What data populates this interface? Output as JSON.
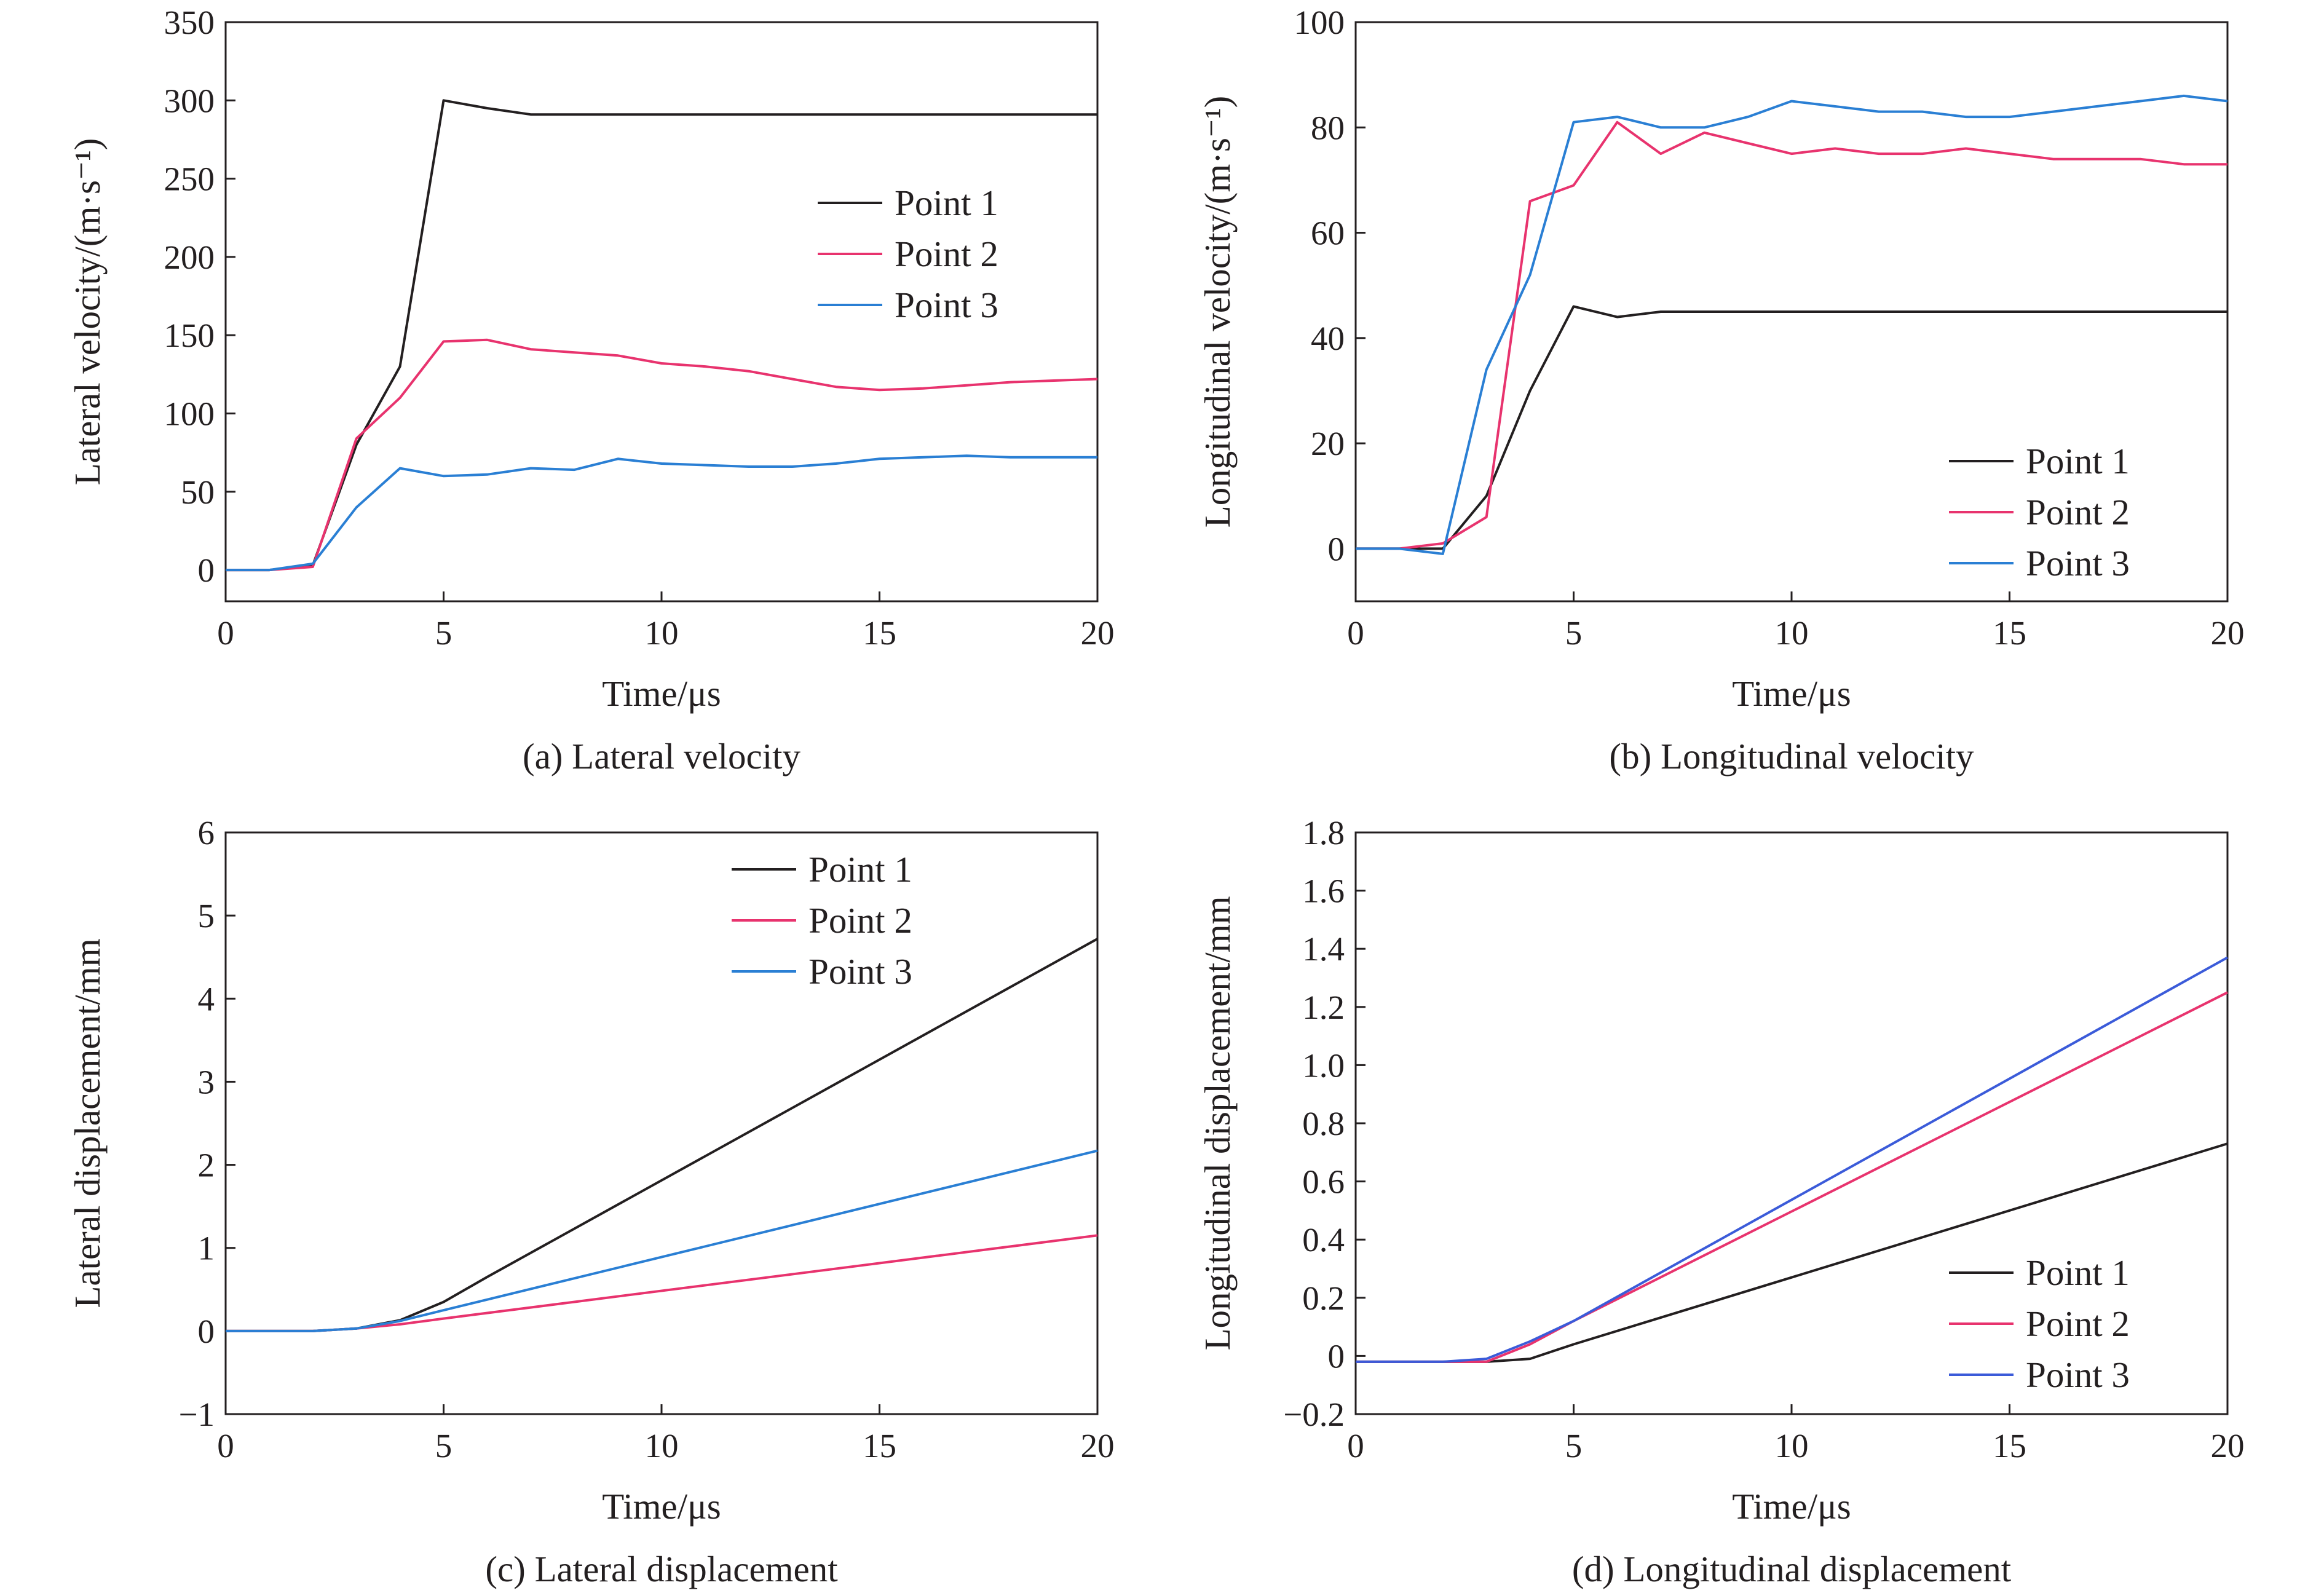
{
  "colors": {
    "point1": "#231f20",
    "point2": "#e8336e",
    "point3": "#2a7fd4",
    "point3_alt": "#3b5bd9",
    "axis": "#231f20"
  },
  "chart_data": [
    {
      "type": "line",
      "caption": "(a) Lateral velocity",
      "xlabel": "Time/μs",
      "ylabel": "Lateral velocity/(m·s⁻¹)",
      "xlim": [
        0,
        20
      ],
      "ylim": [
        -20,
        350
      ],
      "xticks": [
        "0",
        "5",
        "10",
        "15",
        "20"
      ],
      "xtick_values": [
        0,
        5,
        10,
        15,
        20
      ],
      "yticks": [
        "0",
        "50",
        "100",
        "150",
        "200",
        "250",
        "300",
        "350"
      ],
      "ytick_values": [
        0,
        50,
        100,
        150,
        200,
        250,
        300,
        350
      ],
      "legend_position": "upper-right",
      "grid": false,
      "series": [
        {
          "name": "Point 1",
          "color_key": "point1",
          "x": [
            0,
            1,
            2,
            3,
            4,
            5,
            6,
            7,
            8,
            10,
            15,
            20
          ],
          "y": [
            0,
            0,
            3,
            80,
            130,
            300,
            295,
            291,
            291,
            291,
            291,
            291
          ]
        },
        {
          "name": "Point 2",
          "color_key": "point2",
          "x": [
            0,
            1,
            2,
            3,
            4,
            5,
            6,
            7,
            8,
            9,
            10,
            11,
            12,
            13,
            14,
            15,
            16,
            17,
            18,
            19,
            20
          ],
          "y": [
            0,
            0,
            2,
            84,
            110,
            146,
            147,
            141,
            139,
            137,
            132,
            130,
            127,
            122,
            117,
            115,
            116,
            118,
            120,
            121,
            122
          ]
        },
        {
          "name": "Point 3",
          "color_key": "point3",
          "x": [
            0,
            1,
            2,
            3,
            4,
            5,
            6,
            7,
            8,
            9,
            10,
            11,
            12,
            13,
            14,
            15,
            16,
            17,
            18,
            19,
            20
          ],
          "y": [
            0,
            0,
            4,
            40,
            65,
            60,
            61,
            65,
            64,
            71,
            68,
            67,
            66,
            66,
            68,
            71,
            72,
            73,
            72,
            72,
            72
          ]
        }
      ]
    },
    {
      "type": "line",
      "caption": "(b) Longitudinal velocity",
      "xlabel": "Time/μs",
      "ylabel": "Longitudinal velocity/(m·s⁻¹)",
      "xlim": [
        0,
        20
      ],
      "ylim": [
        -10,
        100
      ],
      "xticks": [
        "0",
        "5",
        "10",
        "15",
        "20"
      ],
      "xtick_values": [
        0,
        5,
        10,
        15,
        20
      ],
      "yticks": [
        "0",
        "20",
        "40",
        "60",
        "80",
        "100"
      ],
      "ytick_values": [
        0,
        20,
        40,
        60,
        80,
        100
      ],
      "legend_position": "lower-right",
      "grid": false,
      "series": [
        {
          "name": "Point 1",
          "color_key": "point1",
          "x": [
            0,
            1,
            2,
            3,
            4,
            5,
            6,
            7,
            10,
            15,
            20
          ],
          "y": [
            0,
            0,
            0,
            10,
            30,
            46,
            44,
            45,
            45,
            45,
            45
          ]
        },
        {
          "name": "Point 2",
          "color_key": "point2",
          "x": [
            0,
            1,
            2,
            3,
            4,
            5,
            6,
            7,
            8,
            9,
            10,
            11,
            12,
            13,
            14,
            15,
            16,
            17,
            18,
            19,
            20
          ],
          "y": [
            0,
            0,
            1,
            6,
            66,
            69,
            81,
            75,
            79,
            77,
            75,
            76,
            75,
            75,
            76,
            75,
            74,
            74,
            74,
            73,
            73
          ]
        },
        {
          "name": "Point 3",
          "color_key": "point3",
          "x": [
            0,
            1,
            2,
            3,
            4,
            5,
            6,
            7,
            8,
            9,
            10,
            11,
            12,
            13,
            14,
            15,
            16,
            17,
            18,
            19,
            20
          ],
          "y": [
            0,
            0,
            -1,
            34,
            52,
            81,
            82,
            80,
            80,
            82,
            85,
            84,
            83,
            83,
            82,
            82,
            83,
            84,
            85,
            86,
            85
          ]
        }
      ]
    },
    {
      "type": "line",
      "caption": "(c) Lateral displacement",
      "xlabel": "Time/μs",
      "ylabel": "Lateral displacement/mm",
      "xlim": [
        0,
        20
      ],
      "ylim": [
        -1,
        6
      ],
      "xticks": [
        "0",
        "5",
        "10",
        "15",
        "20"
      ],
      "xtick_values": [
        0,
        5,
        10,
        15,
        20
      ],
      "yticks": [
        "−1",
        "0",
        "1",
        "2",
        "3",
        "4",
        "5",
        "6"
      ],
      "ytick_values": [
        -1,
        0,
        1,
        2,
        3,
        4,
        5,
        6
      ],
      "legend_position": "upper-right",
      "grid": false,
      "series": [
        {
          "name": "Point 1",
          "color_key": "point1",
          "x": [
            0,
            2,
            3,
            4,
            5,
            6,
            20
          ],
          "y": [
            0,
            0,
            0.03,
            0.13,
            0.35,
            0.65,
            4.72
          ]
        },
        {
          "name": "Point 2",
          "color_key": "point2",
          "x": [
            0,
            2,
            3,
            4,
            5,
            20
          ],
          "y": [
            0,
            0,
            0.03,
            0.08,
            0.15,
            1.15
          ]
        },
        {
          "name": "Point 3",
          "color_key": "point3",
          "x": [
            0,
            2,
            3,
            4,
            5,
            20
          ],
          "y": [
            0,
            0,
            0.03,
            0.12,
            0.25,
            2.17
          ]
        }
      ]
    },
    {
      "type": "line",
      "caption": "(d) Longitudinal displacement",
      "xlabel": "Time/μs",
      "ylabel": "Longitudinal displacement/mm",
      "xlim": [
        0,
        20
      ],
      "ylim": [
        -0.2,
        1.8
      ],
      "xticks": [
        "0",
        "5",
        "10",
        "15",
        "20"
      ],
      "xtick_values": [
        0,
        5,
        10,
        15,
        20
      ],
      "yticks": [
        "−0.2",
        "0",
        "0.2",
        "0.4",
        "0.6",
        "0.8",
        "1.0",
        "1.2",
        "1.4",
        "1.6",
        "1.8"
      ],
      "ytick_values": [
        -0.2,
        0,
        0.2,
        0.4,
        0.6,
        0.8,
        1.0,
        1.2,
        1.4,
        1.6,
        1.8
      ],
      "legend_position": "lower-right",
      "grid": false,
      "series": [
        {
          "name": "Point 1",
          "color_key": "point1",
          "x": [
            0,
            2,
            3,
            4,
            5,
            20
          ],
          "y": [
            -0.02,
            -0.02,
            -0.02,
            -0.01,
            0.04,
            0.73
          ]
        },
        {
          "name": "Point 2",
          "color_key": "point2",
          "x": [
            0,
            2,
            3,
            4,
            5,
            20
          ],
          "y": [
            -0.02,
            -0.02,
            -0.02,
            0.04,
            0.12,
            1.25
          ]
        },
        {
          "name": "Point 3",
          "color_key": "point3_alt",
          "x": [
            0,
            2,
            3,
            4,
            5,
            20
          ],
          "y": [
            -0.02,
            -0.02,
            -0.01,
            0.05,
            0.12,
            1.37
          ]
        }
      ]
    }
  ]
}
